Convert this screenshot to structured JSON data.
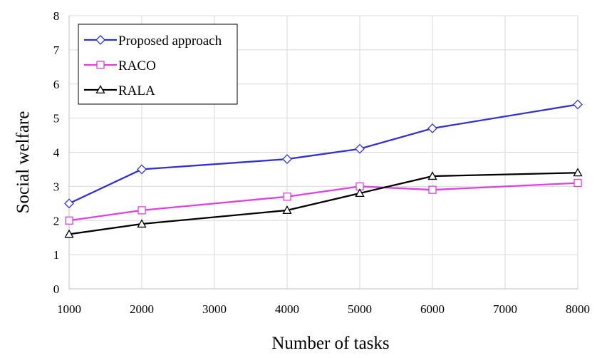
{
  "chart_data": {
    "type": "line",
    "title": "",
    "xlabel": "Number of tasks",
    "ylabel": "Social welfare",
    "xlim": [
      1000,
      8000
    ],
    "ylim": [
      0,
      8
    ],
    "x_ticks": [
      "1000",
      "2000",
      "3000",
      "4000",
      "5000",
      "6000",
      "7000",
      "8000"
    ],
    "y_ticks": [
      "0",
      "1",
      "2",
      "3",
      "4",
      "5",
      "6",
      "7",
      "8"
    ],
    "grid": true,
    "legend_position": "top-left",
    "series": [
      {
        "name": "Proposed approach",
        "color": "#3333cc",
        "marker": "diamond",
        "x": [
          1000,
          2000,
          4000,
          5000,
          6000,
          8000
        ],
        "y": [
          2.5,
          3.5,
          3.8,
          4.1,
          4.7,
          5.4
        ]
      },
      {
        "name": "RACO",
        "color": "#e040e0",
        "marker": "square",
        "x": [
          1000,
          2000,
          4000,
          5000,
          6000,
          8000
        ],
        "y": [
          2.0,
          2.3,
          2.7,
          3.0,
          2.9,
          3.1
        ]
      },
      {
        "name": "RALA",
        "color": "#000000",
        "marker": "triangle",
        "x": [
          1000,
          2000,
          4000,
          5000,
          6000,
          8000
        ],
        "y": [
          1.6,
          1.9,
          2.3,
          2.8,
          3.3,
          3.4
        ]
      }
    ]
  }
}
